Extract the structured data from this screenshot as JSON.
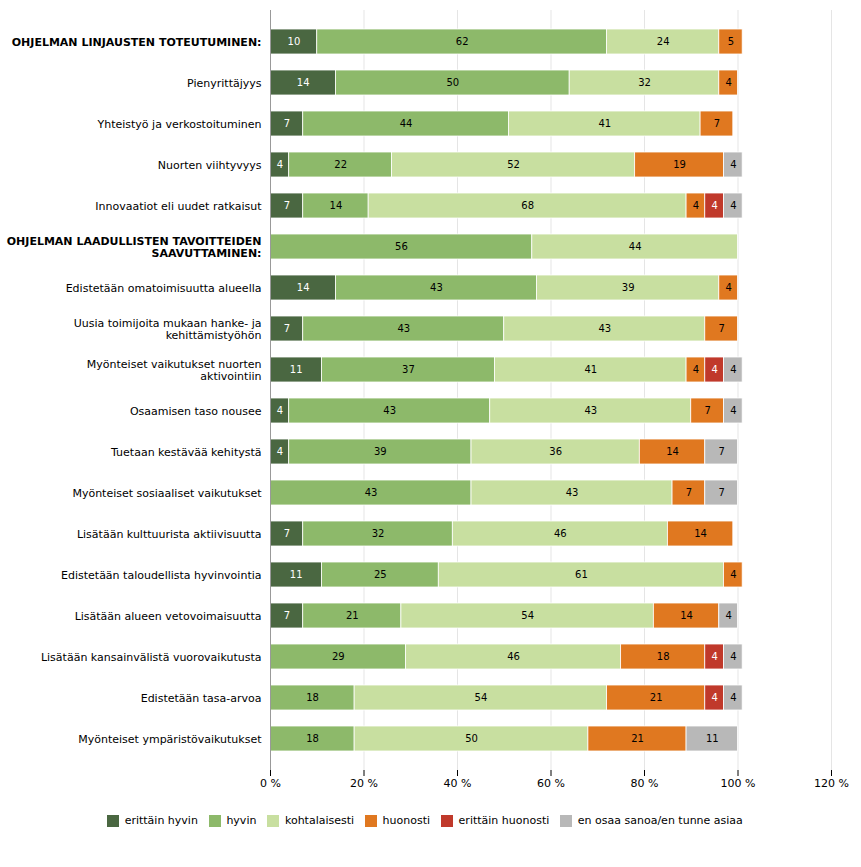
{
  "chart_data": {
    "type": "bar",
    "orientation": "horizontal",
    "stacked": true,
    "data_labels": true,
    "grid": true,
    "legend": "bottom",
    "categories": [
      "OHJELMAN LINJAUSTEN TOTEUTUMINEN:",
      "Pienyrittäjyys",
      "Yhteistyö ja verkostoituminen",
      "Nuorten viihtyvyys",
      "Innovaatiot eli uudet ratkaisut",
      "OHJELMAN LAADULLISTEN TAVOITTEIDEN\nSAAVUTTAMINEN:",
      "Edistetään omatoimisuutta alueella",
      "Uusia toimijoita mukaan hanke- ja\nkehittämistyöhön",
      "Myönteiset vaikutukset nuorten\naktivointiin",
      "Osaamisen taso nousee",
      "Tuetaan kestävää kehitystä",
      "Myönteiset sosiaaliset vaikutukset",
      "Lisätään kulttuurista aktiivisuutta",
      "Edistetään taloudellista hyvinvointia",
      "Lisätään alueen vetovoimaisuutta",
      "Lisätään kansainvälistä vuorovaikutusta",
      "Edistetään tasa-arvoa",
      "Myönteiset ympäristövaikutukset"
    ],
    "series": [
      {
        "name": "erittäin hyvin",
        "color": "#4a6741",
        "values": [
          10,
          14,
          7,
          4,
          7,
          0,
          14,
          7,
          11,
          4,
          4,
          0,
          7,
          11,
          7,
          0,
          0,
          0
        ]
      },
      {
        "name": "hyvin",
        "color": "#8db96a",
        "values": [
          62,
          50,
          44,
          22,
          14,
          56,
          43,
          43,
          37,
          43,
          39,
          43,
          32,
          25,
          21,
          29,
          18,
          18
        ]
      },
      {
        "name": "kohtalaisesti",
        "color": "#c8dfa0",
        "values": [
          24,
          32,
          41,
          52,
          68,
          44,
          39,
          43,
          41,
          43,
          36,
          43,
          46,
          61,
          54,
          46,
          54,
          50
        ]
      },
      {
        "name": "huonosti",
        "color": "#e07820",
        "values": [
          5,
          4,
          7,
          19,
          4,
          0,
          4,
          7,
          4,
          7,
          14,
          7,
          14,
          4,
          14,
          18,
          21,
          21
        ]
      },
      {
        "name": "erittäin huonosti",
        "color": "#c0392b",
        "values": [
          0,
          0,
          0,
          0,
          4,
          0,
          0,
          0,
          4,
          0,
          0,
          0,
          0,
          0,
          0,
          4,
          4,
          0
        ]
      },
      {
        "name": "en osaa sanoa/en tunne asiaa",
        "color": "#b8b8b8",
        "values": [
          0,
          0,
          0,
          4,
          4,
          0,
          0,
          0,
          4,
          4,
          7,
          7,
          0,
          0,
          4,
          4,
          4,
          11
        ]
      }
    ],
    "xlim": [
      0,
      120
    ],
    "xticks": [
      {
        "value": 0,
        "label": "0 %"
      },
      {
        "value": 20,
        "label": "20 %"
      },
      {
        "value": 40,
        "label": "40 %"
      },
      {
        "value": 60,
        "label": "60 %"
      },
      {
        "value": 80,
        "label": "80 %"
      },
      {
        "value": 100,
        "label": "100 %"
      },
      {
        "value": 120,
        "label": "120 %"
      }
    ]
  }
}
